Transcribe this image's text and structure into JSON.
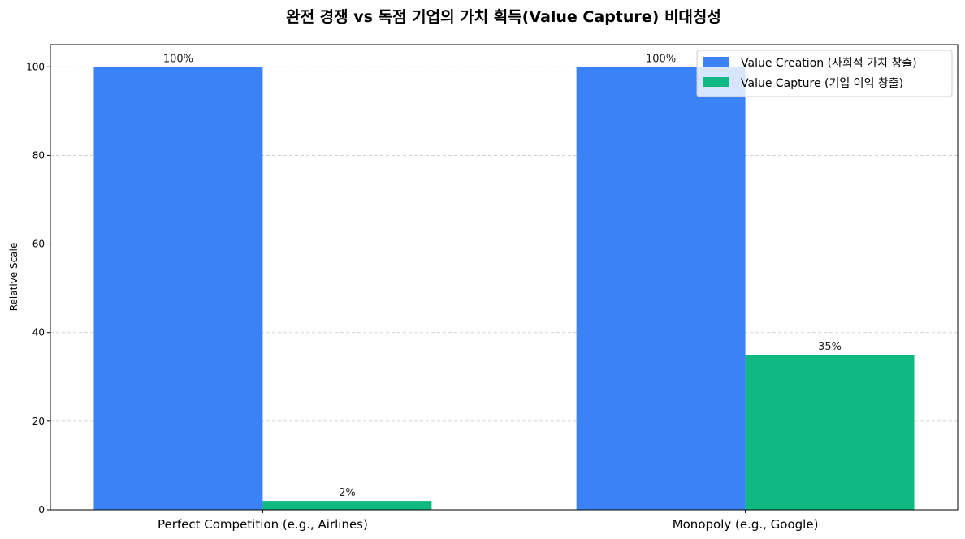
{
  "chart_data": {
    "type": "bar",
    "title": "완전 경쟁 vs 독점 기업의 가치 획득(Value Capture) 비대칭성",
    "xlabel": "",
    "ylabel": "Relative Scale",
    "categories": [
      "Perfect Competition (e.g., Airlines)",
      "Monopoly (e.g., Google)"
    ],
    "series": [
      {
        "name": "Value Creation (사회적 가치 창출)",
        "values": [
          100,
          100
        ],
        "labels": [
          "100%",
          "100%"
        ],
        "color": "#3b82f6"
      },
      {
        "name": "Value Capture (기업 이익 창출)",
        "values": [
          2,
          35
        ],
        "labels": [
          "2%",
          "35%"
        ],
        "color": "#10b981"
      }
    ],
    "ylim": [
      0,
      105
    ],
    "yticks": [
      0,
      20,
      40,
      60,
      80,
      100
    ],
    "grid": "y",
    "legend": "top-right"
  }
}
